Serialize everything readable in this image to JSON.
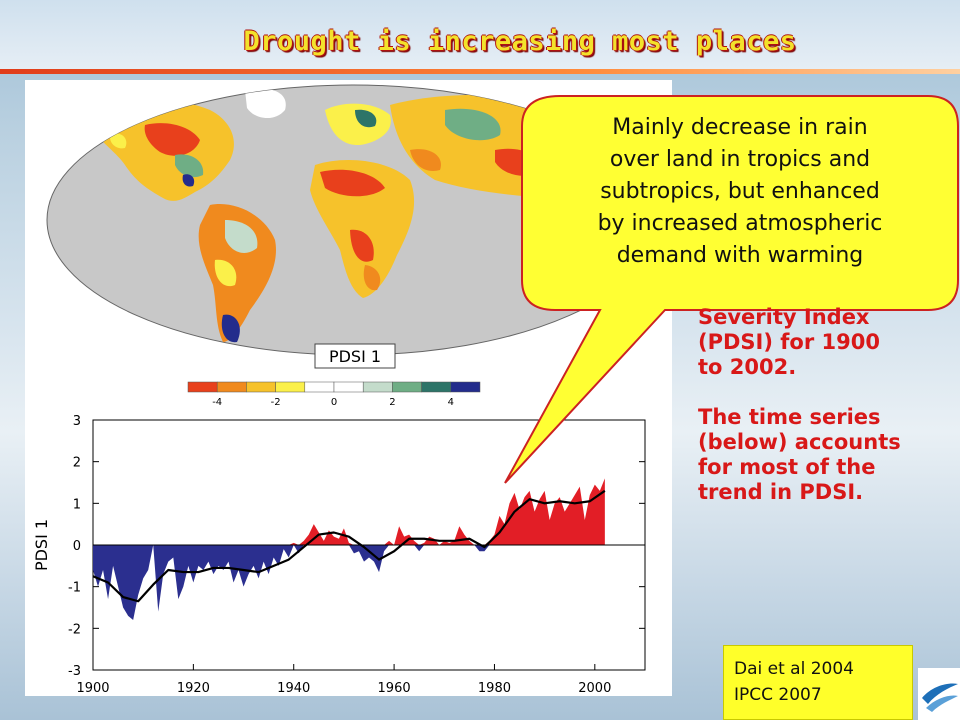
{
  "slide": {
    "title": "Drought is increasing most places",
    "callout": [
      "Mainly decrease in rain",
      "over land in tropics and",
      "subtropics, but enhanced",
      "by increased atmospheric",
      "demand with warming"
    ],
    "side_text": {
      "para1": [
        "Severity Index",
        "(PDSI) for 1900",
        "to 2002."
      ],
      "para2": [
        "The time series",
        "(below) accounts",
        "for most of the",
        "trend in PDSI."
      ]
    },
    "reference": [
      "Dai et al 2004",
      "IPCC 2007"
    ],
    "colors": {
      "title": "#f3e22b",
      "text_red": "#d81818",
      "callout_fill": "#ffff33",
      "callout_border": "#cc2222"
    }
  },
  "map": {
    "label": "PDSI 1",
    "colorbar": {
      "colors": [
        "#e8401c",
        "#f08a1e",
        "#f6c22b",
        "#fbf04a",
        "#ffffff",
        "#ffffff",
        "#c4dccb",
        "#6fae85",
        "#2d7468",
        "#232c8c"
      ],
      "tick_labels": [
        "-4",
        "-2",
        "0",
        "2",
        "4"
      ]
    }
  },
  "chart_data": {
    "type": "area",
    "ylabel": "PDSI 1",
    "xlim": [
      1900,
      2010
    ],
    "ylim": [
      -3,
      3
    ],
    "x_ticks": [
      1900,
      1920,
      1940,
      1960,
      1980,
      2000
    ],
    "y_ticks": [
      -3,
      -2,
      -1,
      0,
      1,
      2,
      3
    ],
    "positive_color": "#e21e26",
    "negative_color": "#2b2f8f",
    "series": [
      {
        "x": [
          1900,
          1901,
          1902,
          1903,
          1904,
          1905,
          1906,
          1907,
          1908,
          1909,
          1910,
          1911,
          1912,
          1913,
          1914,
          1915,
          1916,
          1917,
          1918,
          1919,
          1920,
          1921,
          1922,
          1923,
          1924,
          1925,
          1926,
          1927,
          1928,
          1929,
          1930,
          1931,
          1932,
          1933,
          1934,
          1935,
          1936,
          1937,
          1938,
          1939,
          1940,
          1941,
          1942,
          1943,
          1944,
          1945,
          1946,
          1947,
          1948,
          1949,
          1950,
          1951,
          1952,
          1953,
          1954,
          1955,
          1956,
          1957,
          1958,
          1959,
          1960,
          1961,
          1962,
          1963,
          1964,
          1965,
          1966,
          1967,
          1968,
          1969,
          1970,
          1971,
          1972,
          1973,
          1974,
          1975,
          1976,
          1977,
          1978,
          1979,
          1980,
          1981,
          1982,
          1983,
          1984,
          1985,
          1986,
          1987,
          1988,
          1989,
          1990,
          1991,
          1992,
          1993,
          1994,
          1995,
          1996,
          1997,
          1998,
          1999,
          2000,
          2001,
          2002
        ],
        "values": [
          -0.6,
          -1.0,
          -0.6,
          -1.3,
          -0.5,
          -1.0,
          -1.5,
          -1.7,
          -1.8,
          -1.2,
          -0.8,
          -0.6,
          0.0,
          -1.6,
          -0.7,
          -0.4,
          -0.3,
          -1.3,
          -1.0,
          -0.5,
          -0.9,
          -0.5,
          -0.6,
          -0.4,
          -0.7,
          -0.5,
          -0.6,
          -0.4,
          -0.9,
          -0.6,
          -1.0,
          -0.7,
          -0.5,
          -0.8,
          -0.4,
          -0.7,
          -0.3,
          -0.5,
          -0.1,
          -0.3,
          0.05,
          -0.2,
          0.1,
          0.25,
          0.5,
          0.3,
          0.1,
          0.35,
          0.2,
          0.15,
          0.4,
          0.05,
          -0.2,
          -0.15,
          -0.4,
          -0.3,
          -0.4,
          -0.65,
          -0.15,
          0.1,
          0.0,
          0.45,
          0.2,
          0.25,
          0.1,
          -0.15,
          0.05,
          0.2,
          0.15,
          0.0,
          0.1,
          0.05,
          0.1,
          0.45,
          0.25,
          0.1,
          0.0,
          -0.15,
          -0.15,
          0.1,
          0.25,
          0.7,
          0.5,
          1.0,
          1.25,
          0.85,
          1.15,
          1.3,
          0.8,
          1.1,
          1.3,
          0.6,
          1.0,
          1.15,
          0.8,
          1.0,
          1.2,
          1.4,
          0.6,
          1.2,
          1.45,
          1.3,
          1.6
        ]
      }
    ],
    "smooth": {
      "x": [
        1900,
        1903,
        1906,
        1909,
        1912,
        1915,
        1918,
        1921,
        1924,
        1927,
        1930,
        1933,
        1936,
        1939,
        1942,
        1945,
        1948,
        1951,
        1954,
        1957,
        1960,
        1963,
        1966,
        1969,
        1972,
        1975,
        1978,
        1981,
        1984,
        1987,
        1990,
        1993,
        1996,
        1999,
        2002
      ],
      "values": [
        -0.75,
        -0.9,
        -1.25,
        -1.35,
        -0.95,
        -0.6,
        -0.65,
        -0.65,
        -0.55,
        -0.55,
        -0.6,
        -0.65,
        -0.5,
        -0.35,
        -0.05,
        0.25,
        0.3,
        0.2,
        -0.05,
        -0.35,
        -0.15,
        0.15,
        0.15,
        0.1,
        0.1,
        0.15,
        -0.05,
        0.3,
        0.8,
        1.1,
        1.0,
        1.05,
        1.0,
        1.05,
        1.3
      ]
    }
  }
}
